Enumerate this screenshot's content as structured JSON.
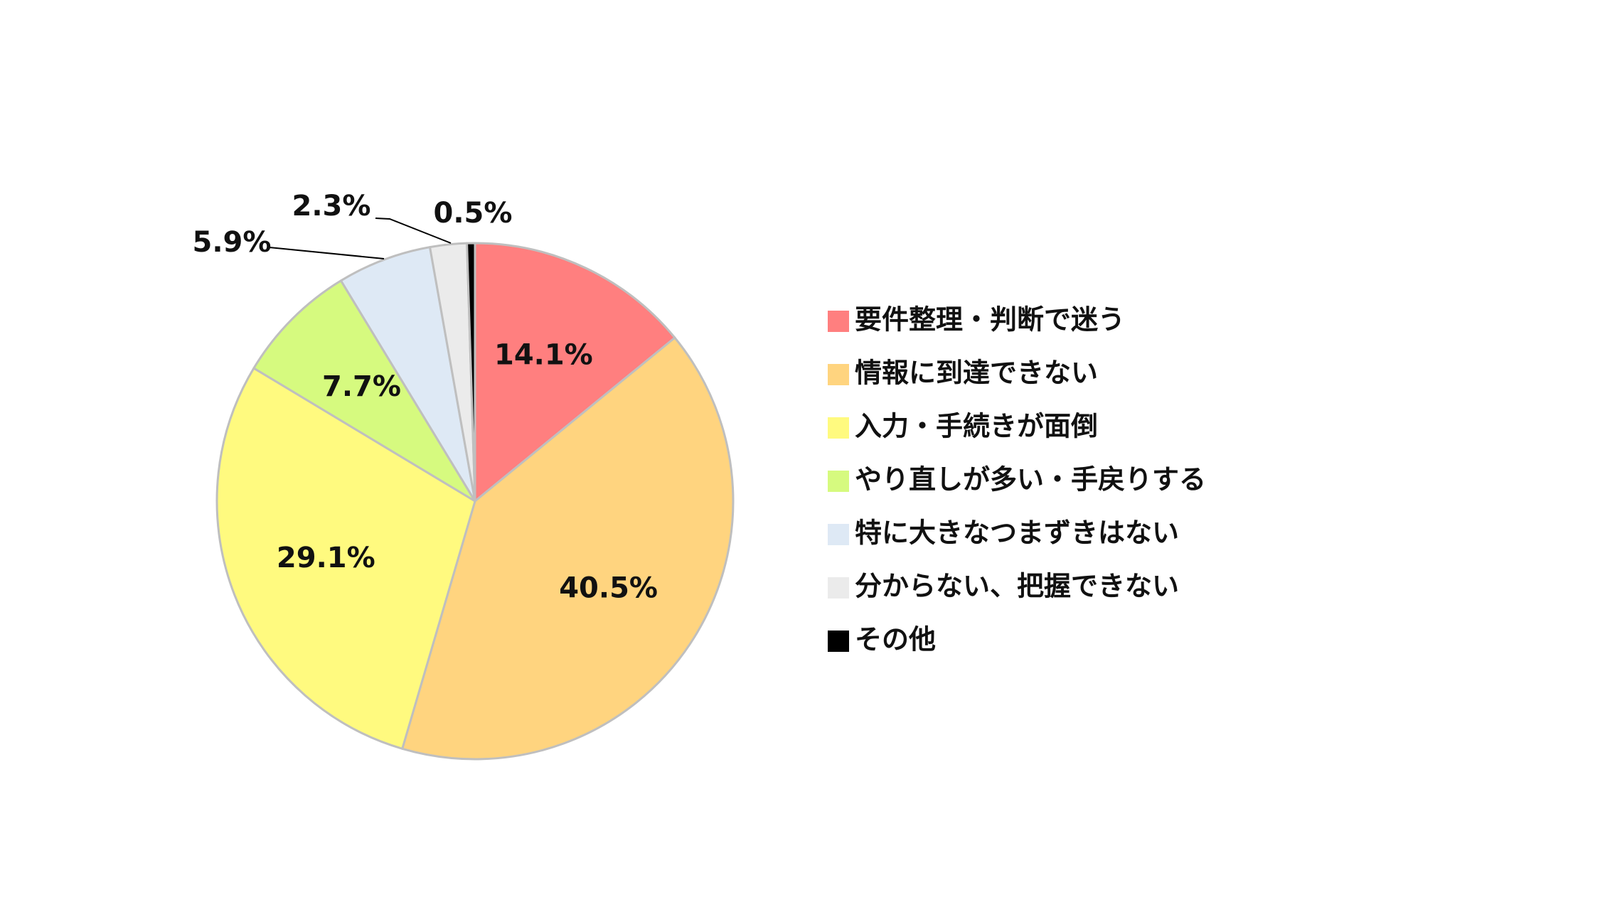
{
  "chart_data": {
    "type": "pie",
    "title": "",
    "start_angle_deg": 0,
    "direction": "clockwise",
    "legend_position": "right",
    "slices": [
      {
        "label": "要件整理・判断で迷う",
        "value": 14.1,
        "display": "14.1%",
        "color": "#FF7F7F"
      },
      {
        "label": "情報に到達できない",
        "value": 40.5,
        "display": "40.5%",
        "color": "#FFD47F"
      },
      {
        "label": "入力・手続きが面倒",
        "value": 29.1,
        "display": "29.1%",
        "color": "#FFFA7F"
      },
      {
        "label": "やり直しが多い・手戻りする",
        "value": 7.7,
        "display": "7.7%",
        "color": "#D6FA7F"
      },
      {
        "label": "特に大きなつまずきはない",
        "value": 5.9,
        "display": "5.9%",
        "color": "#DEE9F5"
      },
      {
        "label": "分からない、把握できない",
        "value": 2.3,
        "display": "2.3%",
        "color": "#EBEBEB"
      },
      {
        "label": "その他",
        "value": 0.5,
        "display": "0.5%",
        "color": "#000000"
      }
    ]
  }
}
